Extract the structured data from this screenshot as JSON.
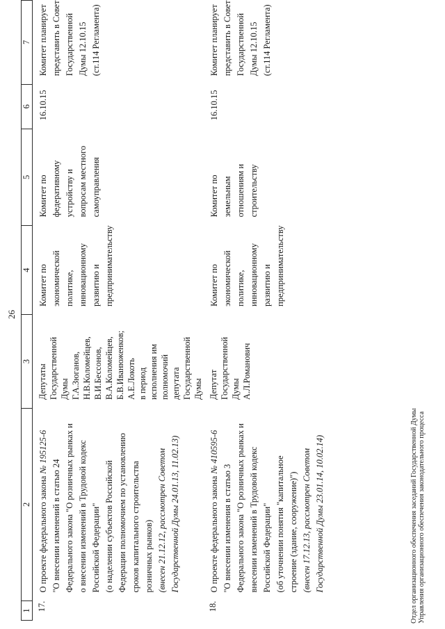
{
  "page": {
    "number": "26",
    "footer_lines": [
      "Отдел организационного обеспечения заседаний Государственной Думы",
      "Управления организационного обеспечения законодательного процесса"
    ]
  },
  "colors": {
    "text": "#1a1a1a",
    "border": "#2b2b2b",
    "background": "#ffffff"
  },
  "table": {
    "header": [
      "1",
      "2",
      "3",
      "4",
      "5",
      "6",
      "7"
    ],
    "rows": [
      {
        "num": "17.",
        "cells": [
          [
            [
              [
                "О проекте федерального закона ",
                0
              ],
              [
                "№ 195125-6",
                1
              ]
            ],
            [
              [
                "\"О внесении изменений в статью 24",
                0
              ]
            ],
            [
              [
                "Федерального закона \"О розничных рынках и",
                0
              ]
            ],
            [
              [
                "о внесении изменений в Трудовой кодекс",
                0
              ]
            ],
            [
              [
                "Российской Федерации\"",
                0
              ]
            ],
            [
              [
                "(о наделении субъектов Российской",
                0
              ]
            ],
            [
              [
                "Федерации полномочием по установлению",
                0
              ]
            ],
            [
              [
                "сроков капитального строительства",
                0
              ]
            ],
            [
              [
                "розничных рынков)",
                0
              ]
            ],
            [
              [
                "(внесен 21.12.12, рассмотрен Советом",
                1
              ]
            ],
            [
              [
                "Государственной Думы 24.01.13, 11.02.13)",
                1
              ]
            ]
          ],
          [
            [
              [
                "Депутаты",
                0
              ]
            ],
            [
              [
                "Государственной",
                0
              ]
            ],
            [
              [
                "Думы",
                0
              ]
            ],
            [
              [
                "Г.А.Зюганов,",
                0
              ]
            ],
            [
              [
                "Н.В.Коломейцев,",
                0
              ]
            ],
            [
              [
                "В.И.Бессонов,",
                0
              ]
            ],
            [
              [
                "В.А.Коломейцев,",
                0
              ]
            ],
            [
              [
                "Б.В.Иванюженков;",
                0
              ]
            ],
            [
              [
                "А.Е.Локоть",
                0
              ]
            ],
            [
              [
                "в период",
                0
              ]
            ],
            [
              [
                "исполнения им",
                0
              ]
            ],
            [
              [
                "полномочий",
                0
              ]
            ],
            [
              [
                "депутата",
                0
              ]
            ],
            [
              [
                "Государственной",
                0
              ]
            ],
            [
              [
                "Думы",
                0
              ]
            ]
          ],
          [
            [
              [
                "Комитет по",
                0
              ]
            ],
            [
              [
                "экономической",
                0
              ]
            ],
            [
              [
                "политике,",
                0
              ]
            ],
            [
              [
                "инновационному",
                0
              ]
            ],
            [
              [
                "развитию и",
                0
              ]
            ],
            [
              [
                "предпринимательству",
                0
              ]
            ]
          ],
          [
            [
              [
                "Комитет по",
                0
              ]
            ],
            [
              [
                "федеративному",
                0
              ]
            ],
            [
              [
                "устройству и",
                0
              ]
            ],
            [
              [
                "вопросам местного",
                0
              ]
            ],
            [
              [
                "самоуправления",
                0
              ]
            ]
          ],
          [
            [
              [
                "16.10.15",
                0
              ]
            ]
          ],
          [
            [
              [
                "Комитет планирует",
                0
              ]
            ],
            [
              [
                "представить в Совет",
                0
              ]
            ],
            [
              [
                "Государственной",
                0
              ]
            ],
            [
              [
                "Думы 12.10.15",
                0
              ]
            ],
            [
              [
                "(ст.114 Регламента)",
                0
              ]
            ]
          ]
        ]
      },
      {
        "num": "18.",
        "cells": [
          [
            [
              [
                "О проекте федерального закона ",
                0
              ],
              [
                "№ 410595-6",
                1
              ]
            ],
            [
              [
                "\"О внесении изменения в статью 3",
                0
              ]
            ],
            [
              [
                "Федерального закона \"О розничных рынках и",
                0
              ]
            ],
            [
              [
                "внесении изменений в Трудовой кодекс",
                0
              ]
            ],
            [
              [
                "Российской Федерации\"",
                0
              ]
            ],
            [
              [
                "(об уточнении понятия \"капитальное",
                0
              ]
            ],
            [
              [
                "строение (здание, сооружение)\")",
                0
              ]
            ],
            [
              [
                "(внесен 17.12.13, рассмотрен Советом",
                1
              ]
            ],
            [
              [
                "Государственной Думы 23.01.14, 10.02.14)",
                1
              ]
            ]
          ],
          [
            [
              [
                "Депутат",
                0
              ]
            ],
            [
              [
                "Государственной",
                0
              ]
            ],
            [
              [
                "Думы",
                0
              ]
            ],
            [
              [
                "А.Л.Романович",
                0
              ]
            ]
          ],
          [
            [
              [
                "Комитет по",
                0
              ]
            ],
            [
              [
                "экономической",
                0
              ]
            ],
            [
              [
                "политике,",
                0
              ]
            ],
            [
              [
                "инновационному",
                0
              ]
            ],
            [
              [
                "развитию и",
                0
              ]
            ],
            [
              [
                "предпринимательству",
                0
              ]
            ]
          ],
          [
            [
              [
                "Комитет по",
                0
              ]
            ],
            [
              [
                "земельным",
                0
              ]
            ],
            [
              [
                "отношениям и",
                0
              ]
            ],
            [
              [
                "строительству",
                0
              ]
            ]
          ],
          [
            [
              [
                "16.10.15",
                0
              ]
            ]
          ],
          [
            [
              [
                "Комитет планирует",
                0
              ]
            ],
            [
              [
                "представить в Совет",
                0
              ]
            ],
            [
              [
                "Государственной",
                0
              ]
            ],
            [
              [
                "Думы 12.10.15",
                0
              ]
            ],
            [
              [
                "(ст.114 Регламента)",
                0
              ]
            ]
          ]
        ]
      }
    ]
  }
}
